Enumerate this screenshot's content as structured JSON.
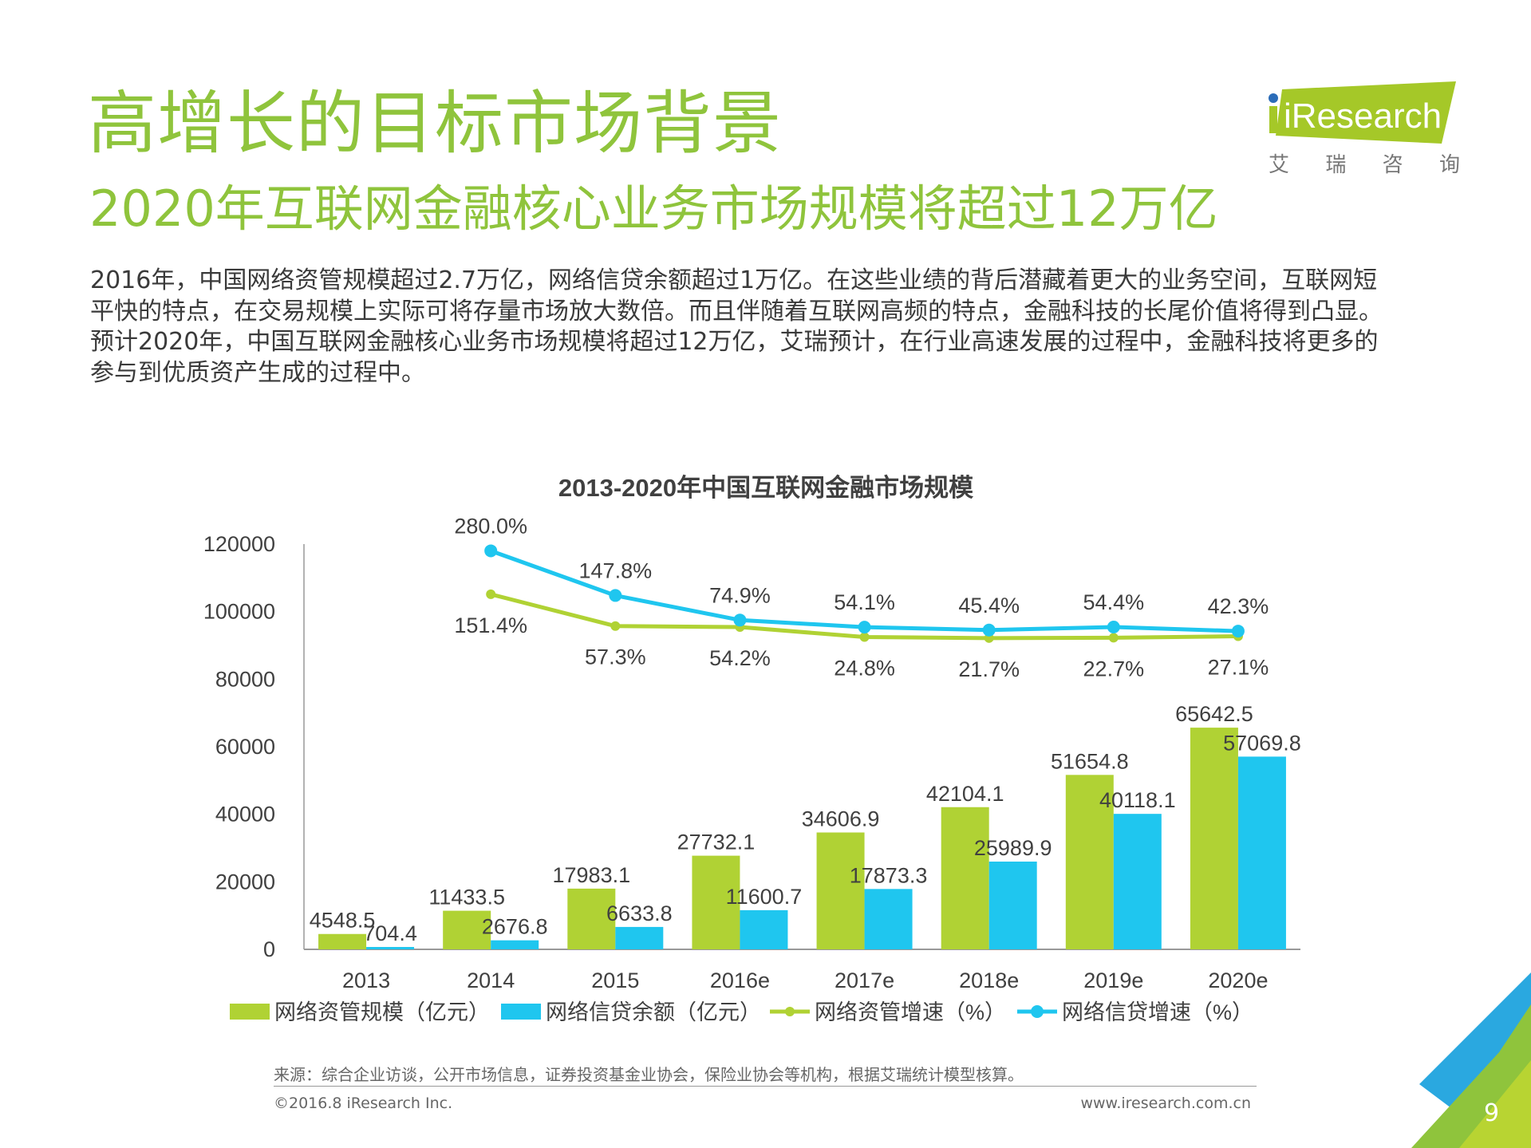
{
  "header": {
    "title": "高增长的目标市场背景",
    "subtitle": "2020年互联网金融核心业务市场规模将超过12万亿"
  },
  "logo": {
    "brand": "iResearch",
    "chinese": [
      "艾",
      "瑞",
      "咨",
      "询"
    ],
    "brand_color": "#a5c828",
    "dot_color": "#2b6cb8"
  },
  "body_lines": [
    "2016年，中国网络资管规模超过2.7万亿，网络信贷余额超过1万亿。在这些业绩的背后潜藏着更大的业务空间，互联网短",
    "平快的特点，在交易规模上实际可将存量市场放大数倍。而且伴随着互联网高频的特点，金融科技的长尾价值将得到凸显。",
    "预计2020年，中国互联网金融核心业务市场规模将超过12万亿，艾瑞预计，在行业高速发展的过程中，金融科技将更多的",
    "参与到优质资产生成的过程中。"
  ],
  "chart_data": {
    "type": "bar",
    "title": "2013-2020年中国互联网金融市场规模",
    "categories": [
      "2013",
      "2014",
      "2015",
      "2016e",
      "2017e",
      "2018e",
      "2019e",
      "2020e"
    ],
    "ylim": [
      0,
      120000
    ],
    "yticks": [
      "0",
      "20000",
      "40000",
      "60000",
      "80000",
      "100000",
      "120000"
    ],
    "y2lim": [
      -900,
      300
    ],
    "grid": false,
    "legend_position": "bottom",
    "series": [
      {
        "name": "网络资管规模（亿元）",
        "kind": "bar",
        "color": "#b0d234",
        "values": [
          4548.5,
          11433.5,
          17983.1,
          27732.1,
          34606.9,
          42104.1,
          51654.8,
          65642.5
        ],
        "labels": [
          "4548.5",
          "11433.5",
          "17983.1",
          "27732.1",
          "34606.9",
          "42104.1",
          "51654.8",
          "65642.5"
        ]
      },
      {
        "name": "网络信贷余额（亿元）",
        "kind": "bar",
        "color": "#1fc6ef",
        "values": [
          704.4,
          2676.8,
          6633.8,
          11600.7,
          17873.3,
          25989.9,
          40118.1,
          57069.8
        ],
        "labels": [
          "704.4",
          "2676.8",
          "6633.8",
          "11600.7",
          "17873.3",
          "25989.9",
          "40118.1",
          "57069.8"
        ]
      },
      {
        "name": "网络资管增速（%）",
        "kind": "line",
        "color": "#b0d234",
        "values": [
          null,
          151.4,
          57.3,
          54.2,
          24.8,
          21.7,
          22.7,
          27.1
        ],
        "labels": [
          "",
          "151.4%",
          "57.3%",
          "54.2%",
          "24.8%",
          "21.7%",
          "22.7%",
          "27.1%"
        ]
      },
      {
        "name": "网络信贷增速（%）",
        "kind": "line",
        "color": "#1fc6ef",
        "values": [
          null,
          280.0,
          147.8,
          74.9,
          54.1,
          45.4,
          54.4,
          42.3
        ],
        "labels": [
          "",
          "280.0%",
          "147.8%",
          "74.9%",
          "54.1%",
          "45.4%",
          "54.4%",
          "42.3%"
        ]
      }
    ]
  },
  "footer": {
    "source": "来源：综合企业访谈，公开市场信息，证券投资基金业协会，保险业协会等机构，根据艾瑞统计模型核算。",
    "copyright": "©2016.8 iResearch Inc.",
    "website": "www.iresearch.com.cn",
    "page_number": "9"
  }
}
